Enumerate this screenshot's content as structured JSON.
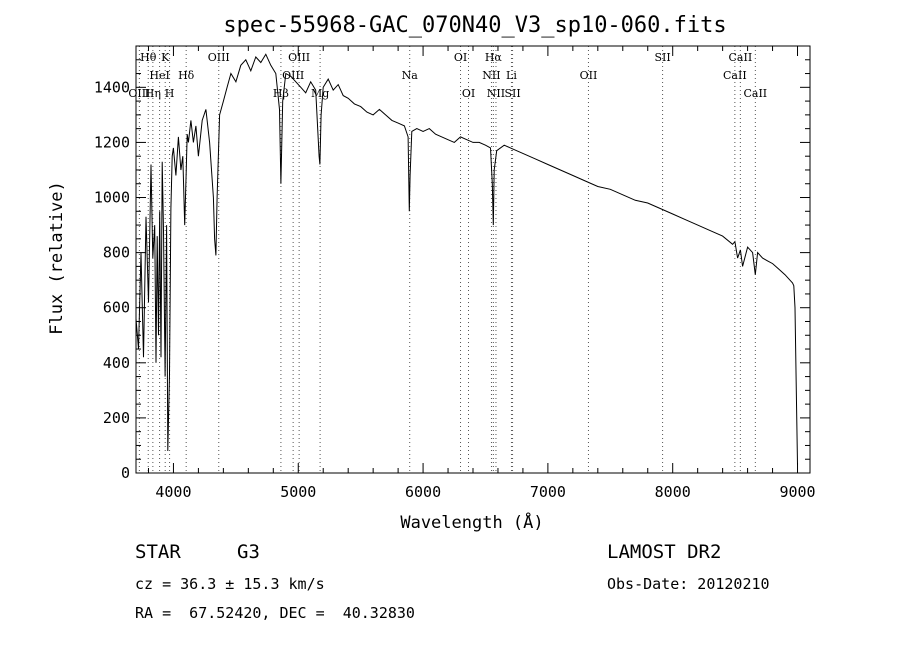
{
  "chart_data": {
    "type": "line",
    "title": "spec-55968-GAC_070N40_V3_sp10-060.fits",
    "xlabel": "Wavelength (Å)",
    "ylabel": "Flux (relative)",
    "xlim": [
      3700,
      9100
    ],
    "ylim": [
      0,
      1550
    ],
    "xticks": [
      4000,
      5000,
      6000,
      7000,
      8000,
      9000
    ],
    "yticks": [
      0,
      200,
      400,
      600,
      800,
      1000,
      1200,
      1400
    ],
    "grid": false,
    "series": [
      {
        "x": [
          3700,
          3720,
          3740,
          3760,
          3780,
          3800,
          3820,
          3835,
          3850,
          3860,
          3870,
          3880,
          3890,
          3900,
          3910,
          3920,
          3933,
          3945,
          3955,
          3968,
          3980,
          3990,
          4000,
          4020,
          4040,
          4060,
          4075,
          4090,
          4101,
          4110,
          4120,
          4140,
          4160,
          4180,
          4200,
          4230,
          4260,
          4290,
          4320,
          4330,
          4340,
          4350,
          4370,
          4400,
          4430,
          4460,
          4500,
          4540,
          4580,
          4620,
          4660,
          4700,
          4740,
          4780,
          4820,
          4850,
          4861,
          4875,
          4900,
          4940,
          4980,
          5020,
          5060,
          5100,
          5140,
          5167,
          5173,
          5183,
          5200,
          5240,
          5280,
          5320,
          5360,
          5400,
          5450,
          5500,
          5550,
          5600,
          5650,
          5700,
          5750,
          5800,
          5850,
          5880,
          5890,
          5896,
          5910,
          5950,
          6000,
          6050,
          6100,
          6150,
          6200,
          6250,
          6300,
          6350,
          6400,
          6450,
          6500,
          6540,
          6555,
          6563,
          6570,
          6590,
          6650,
          6700,
          6800,
          6900,
          7000,
          7100,
          7200,
          7300,
          7400,
          7500,
          7600,
          7700,
          7800,
          7900,
          8000,
          8100,
          8200,
          8300,
          8400,
          8480,
          8498,
          8520,
          8542,
          8560,
          8600,
          8640,
          8662,
          8680,
          8720,
          8760,
          8800,
          8850,
          8900,
          8940,
          8960,
          8970,
          8980,
          8990,
          9000
        ],
        "y": [
          560,
          450,
          800,
          420,
          930,
          620,
          1120,
          780,
          900,
          400,
          860,
          500,
          950,
          420,
          1130,
          880,
          350,
          900,
          80,
          360,
          960,
          1150,
          1180,
          1080,
          1220,
          1100,
          1150,
          900,
          1080,
          1230,
          1200,
          1280,
          1200,
          1260,
          1150,
          1280,
          1320,
          1200,
          1000,
          850,
          790,
          1000,
          1300,
          1350,
          1400,
          1450,
          1420,
          1480,
          1500,
          1460,
          1510,
          1490,
          1520,
          1480,
          1450,
          1320,
          1050,
          1350,
          1450,
          1440,
          1420,
          1400,
          1380,
          1420,
          1390,
          1150,
          1120,
          1300,
          1400,
          1430,
          1390,
          1410,
          1370,
          1360,
          1340,
          1330,
          1310,
          1300,
          1320,
          1300,
          1280,
          1270,
          1260,
          1220,
          950,
          1080,
          1240,
          1250,
          1240,
          1250,
          1230,
          1220,
          1210,
          1200,
          1220,
          1210,
          1200,
          1200,
          1190,
          1180,
          1050,
          900,
          1100,
          1170,
          1190,
          1180,
          1160,
          1140,
          1120,
          1100,
          1080,
          1060,
          1040,
          1030,
          1010,
          990,
          980,
          960,
          940,
          920,
          900,
          880,
          860,
          830,
          840,
          780,
          810,
          750,
          820,
          800,
          720,
          800,
          780,
          770,
          760,
          740,
          720,
          700,
          690,
          680,
          600,
          300,
          30
        ]
      }
    ],
    "spectral_lines": [
      {
        "label": "Hθ",
        "x": 3798,
        "row": 1
      },
      {
        "label": "K",
        "x": 3934,
        "row": 1
      },
      {
        "label": "HeI",
        "x": 3889,
        "row": 2
      },
      {
        "label": "Hδ",
        "x": 4102,
        "row": 2
      },
      {
        "label": "OIII",
        "x": 3727,
        "row": 3
      },
      {
        "label": "Hη",
        "x": 3835,
        "row": 3
      },
      {
        "label": "H",
        "x": 3969,
        "row": 3
      },
      {
        "label": "OIII",
        "x": 4363,
        "row": 1
      },
      {
        "label": "OIII",
        "x": 5007,
        "row": 1
      },
      {
        "label": "OIII",
        "x": 4959,
        "row": 2
      },
      {
        "label": "Hβ",
        "x": 4861,
        "row": 3
      },
      {
        "label": "Mg",
        "x": 5175,
        "row": 3
      },
      {
        "label": "Na",
        "x": 5893,
        "row": 2
      },
      {
        "label": "OI",
        "x": 6300,
        "row": 1
      },
      {
        "label": "OI",
        "x": 6364,
        "row": 3
      },
      {
        "label": "Hα",
        "x": 6563,
        "row": 1
      },
      {
        "label": "NII",
        "x": 6548,
        "row": 2
      },
      {
        "label": "Li",
        "x": 6708,
        "row": 2
      },
      {
        "label": "NII",
        "x": 6584,
        "row": 3
      },
      {
        "label": "SII",
        "x": 6717,
        "row": 3
      },
      {
        "label": "OII",
        "x": 7325,
        "row": 2
      },
      {
        "label": "SII",
        "x": 7919,
        "row": 1
      },
      {
        "label": "CaII",
        "x": 8542,
        "row": 1
      },
      {
        "label": "CaII",
        "x": 8498,
        "row": 2
      },
      {
        "label": "CaII",
        "x": 8662,
        "row": 3
      }
    ]
  },
  "info": {
    "object_class": "STAR",
    "subclass": "G3",
    "survey": "LAMOST DR2",
    "cz": "cz = 36.3 ± 15.3 km/s",
    "obs_date": "Obs-Date: 20120210",
    "coords": "RA =  67.52420, DEC =  40.32830"
  }
}
